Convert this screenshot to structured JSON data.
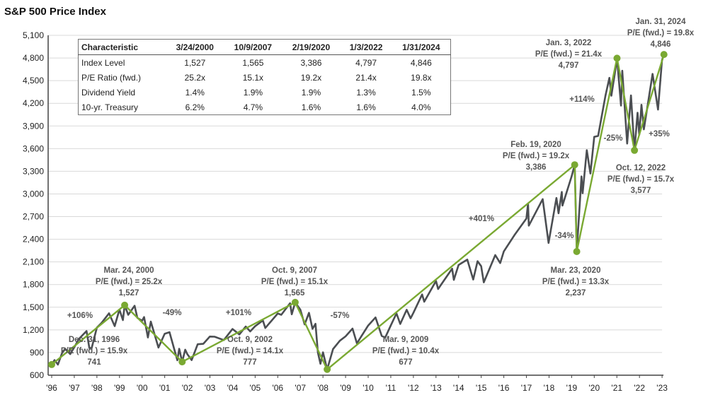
{
  "chart_data": {
    "type": "line",
    "title": "S&P 500 Price Index",
    "ylim": [
      600,
      5100
    ],
    "yticks": [
      600,
      900,
      1200,
      1500,
      1800,
      2100,
      2400,
      2700,
      3000,
      3300,
      3600,
      3900,
      4200,
      4500,
      4800,
      5100
    ],
    "ytick_labels": [
      "600",
      "900",
      "1,200",
      "1,500",
      "1,800",
      "2,100",
      "2,400",
      "2,700",
      "3,000",
      "3,300",
      "3,600",
      "3,900",
      "4,200",
      "4,500",
      "4,800",
      "5,100"
    ],
    "xtick_labels": [
      "'96",
      "'97",
      "'98",
      "'99",
      "'00",
      "'01",
      "'02",
      "'03",
      "'04",
      "'05",
      "'06",
      "'07",
      "'08",
      "'09",
      "'10",
      "'11",
      "'12",
      "'13",
      "'14",
      "'15",
      "'16",
      "'17",
      "'18",
      "'19",
      "'20",
      "'21",
      "'22",
      "'23"
    ],
    "grid": true,
    "colors": {
      "index": "#4b4e52",
      "trend": "#7aa932",
      "grid": "#d9d9d9",
      "text": "#555555"
    },
    "series": [
      {
        "values": [
          [
            "1996-12-31",
            741
          ],
          [
            "1997-02-15",
            800
          ],
          [
            "1997-04-11",
            740
          ],
          [
            "1997-06-15",
            890
          ],
          [
            "1997-08-05",
            950
          ],
          [
            "1997-10-27",
            880
          ],
          [
            "1997-12-31",
            970
          ],
          [
            "1998-03-15",
            1080
          ],
          [
            "1998-07-17",
            1185
          ],
          [
            "1998-08-31",
            960
          ],
          [
            "1998-10-08",
            960
          ],
          [
            "1998-12-31",
            1230
          ],
          [
            "1999-03-15",
            1290
          ],
          [
            "1999-07-16",
            1420
          ],
          [
            "1999-10-15",
            1250
          ],
          [
            "1999-12-31",
            1469
          ],
          [
            "2000-02-25",
            1330
          ],
          [
            "2000-03-24",
            1527
          ],
          [
            "2000-05-20",
            1400
          ],
          [
            "2000-09-01",
            1520
          ],
          [
            "2000-10-15",
            1360
          ],
          [
            "2000-12-31",
            1320
          ],
          [
            "2001-02-01",
            1370
          ],
          [
            "2001-04-04",
            1100
          ],
          [
            "2001-05-21",
            1310
          ],
          [
            "2001-09-21",
            966
          ],
          [
            "2001-12-31",
            1148
          ],
          [
            "2002-03-19",
            1170
          ],
          [
            "2002-07-23",
            797
          ],
          [
            "2002-08-22",
            950
          ],
          [
            "2002-10-09",
            777
          ],
          [
            "2002-11-27",
            938
          ],
          [
            "2002-12-31",
            880
          ],
          [
            "2003-03-11",
            800
          ],
          [
            "2003-06-17",
            1010
          ],
          [
            "2003-09-15",
            1015
          ],
          [
            "2003-12-31",
            1112
          ],
          [
            "2004-03-15",
            1110
          ],
          [
            "2004-08-12",
            1065
          ],
          [
            "2004-12-31",
            1212
          ],
          [
            "2005-04-20",
            1140
          ],
          [
            "2005-08-02",
            1245
          ],
          [
            "2005-10-12",
            1180
          ],
          [
            "2005-12-31",
            1248
          ],
          [
            "2006-05-05",
            1325
          ],
          [
            "2006-06-13",
            1225
          ],
          [
            "2006-12-31",
            1418
          ],
          [
            "2007-02-27",
            1400
          ],
          [
            "2007-07-19",
            1553
          ],
          [
            "2007-08-15",
            1406
          ],
          [
            "2007-10-09",
            1565
          ],
          [
            "2007-12-31",
            1468
          ],
          [
            "2008-03-10",
            1273
          ],
          [
            "2008-05-19",
            1426
          ],
          [
            "2008-07-15",
            1214
          ],
          [
            "2008-09-01",
            1280
          ],
          [
            "2008-10-10",
            899
          ],
          [
            "2008-11-20",
            752
          ],
          [
            "2008-12-31",
            903
          ],
          [
            "2009-03-09",
            677
          ],
          [
            "2009-06-12",
            946
          ],
          [
            "2009-09-30",
            1057
          ],
          [
            "2009-12-31",
            1115
          ],
          [
            "2010-04-23",
            1217
          ],
          [
            "2010-07-02",
            1022
          ],
          [
            "2010-12-31",
            1258
          ],
          [
            "2011-04-29",
            1364
          ],
          [
            "2011-08-08",
            1119
          ],
          [
            "2011-10-03",
            1099
          ],
          [
            "2011-12-31",
            1258
          ],
          [
            "2012-04-02",
            1419
          ],
          [
            "2012-06-01",
            1278
          ],
          [
            "2012-09-14",
            1466
          ],
          [
            "2012-11-15",
            1353
          ],
          [
            "2012-12-31",
            1426
          ],
          [
            "2013-05-21",
            1669
          ],
          [
            "2013-06-24",
            1573
          ],
          [
            "2013-12-31",
            1848
          ],
          [
            "2014-02-03",
            1741
          ],
          [
            "2014-09-18",
            2011
          ],
          [
            "2014-10-15",
            1862
          ],
          [
            "2014-12-31",
            2059
          ],
          [
            "2015-05-21",
            2131
          ],
          [
            "2015-08-25",
            1867
          ],
          [
            "2015-11-03",
            2109
          ],
          [
            "2015-12-31",
            2044
          ],
          [
            "2016-02-11",
            1829
          ],
          [
            "2016-08-15",
            2190
          ],
          [
            "2016-11-03",
            2085
          ],
          [
            "2016-12-31",
            2239
          ],
          [
            "2017-06-19",
            2453
          ],
          [
            "2017-12-31",
            2674
          ],
          [
            "2018-01-26",
            2873
          ],
          [
            "2018-02-08",
            2581
          ],
          [
            "2018-09-20",
            2931
          ],
          [
            "2018-12-24",
            2351
          ],
          [
            "2019-04-30",
            2946
          ],
          [
            "2019-06-03",
            2744
          ],
          [
            "2019-07-26",
            3026
          ],
          [
            "2019-08-05",
            2845
          ],
          [
            "2019-12-31",
            3231
          ],
          [
            "2020-02-19",
            3386
          ],
          [
            "2020-03-23",
            2237
          ],
          [
            "2020-06-08",
            3232
          ],
          [
            "2020-06-26",
            3009
          ],
          [
            "2020-09-02",
            3580
          ],
          [
            "2020-10-30",
            3270
          ],
          [
            "2020-12-31",
            3756
          ],
          [
            "2021-03-04",
            3768
          ],
          [
            "2021-06-30",
            4298
          ],
          [
            "2021-09-02",
            4537
          ],
          [
            "2021-10-04",
            4300
          ],
          [
            "2021-12-31",
            4766
          ],
          [
            "2022-01-03",
            4797
          ],
          [
            "2022-03-08",
            4170
          ],
          [
            "2022-03-29",
            4631
          ],
          [
            "2022-06-16",
            3667
          ],
          [
            "2022-08-16",
            4305
          ],
          [
            "2022-10-12",
            3577
          ],
          [
            "2022-12-01",
            4076
          ],
          [
            "2022-12-28",
            3783
          ],
          [
            "2023-02-02",
            4180
          ],
          [
            "2023-03-13",
            3855
          ],
          [
            "2023-07-31",
            4589
          ],
          [
            "2023-10-27",
            4117
          ],
          [
            "2023-12-31",
            4770
          ],
          [
            "2024-01-31",
            4846
          ]
        ]
      },
      {
        "values": [
          [
            "1996-12-31",
            741
          ],
          [
            "2000-03-24",
            1527
          ],
          [
            "2002-10-09",
            777
          ],
          [
            "2007-10-09",
            1565
          ],
          [
            "2009-03-09",
            677
          ],
          [
            "2020-02-19",
            3386
          ],
          [
            "2020-03-23",
            2237
          ],
          [
            "2022-01-03",
            4797
          ],
          [
            "2022-10-12",
            3577
          ],
          [
            "2024-01-31",
            4846
          ]
        ]
      }
    ],
    "annotations": [
      {
        "date": "Dec. 31, 1996",
        "pe": "P/E (fwd.) = 15.9x",
        "level": "741"
      },
      {
        "date": "Mar. 24, 2000",
        "pe": "P/E (fwd.) = 25.2x",
        "level": "1,527"
      },
      {
        "date": "Oct. 9, 2002",
        "pe": "P/E (fwd.) = 14.1x",
        "level": "777"
      },
      {
        "date": "Oct. 9, 2007",
        "pe": "P/E (fwd.) = 15.1x",
        "level": "1,565"
      },
      {
        "date": "Mar. 9, 2009",
        "pe": "P/E (fwd.) = 10.4x",
        "level": "677"
      },
      {
        "date": "Feb. 19, 2020",
        "pe": "P/E (fwd.) = 19.2x",
        "level": "3,386"
      },
      {
        "date": "Mar. 23, 2020",
        "pe": "P/E (fwd.) = 13.3x",
        "level": "2,237"
      },
      {
        "date": "Jan. 3, 2022",
        "pe": "P/E (fwd.) = 21.4x",
        "level": "4,797"
      },
      {
        "date": "Oct. 12, 2022",
        "pe": "P/E (fwd.) = 15.7x",
        "level": "3,577"
      },
      {
        "date": "Jan. 31, 2024",
        "pe": "P/E (fwd.) = 19.8x",
        "level": "4,846"
      }
    ],
    "changes": [
      "+106%",
      "-49%",
      "+101%",
      "-57%",
      "+401%",
      "-34%",
      "+114%",
      "-25%",
      "+35%"
    ]
  },
  "table": {
    "headers": [
      "Characteristic",
      "3/24/2000",
      "10/9/2007",
      "2/19/2020",
      "1/3/2022",
      "1/31/2024"
    ],
    "rows": [
      [
        "Index Level",
        "1,527",
        "1,565",
        "3,386",
        "4,797",
        "4,846"
      ],
      [
        "P/E Ratio (fwd.)",
        "25.2x",
        "15.1x",
        "19.2x",
        "21.4x",
        "19.8x"
      ],
      [
        "Dividend Yield",
        "1.4%",
        "1.9%",
        "1.9%",
        "1.3%",
        "1.5%"
      ],
      [
        "10-yr. Treasury",
        "6.2%",
        "4.7%",
        "1.6%",
        "1.6%",
        "4.0%"
      ]
    ]
  }
}
